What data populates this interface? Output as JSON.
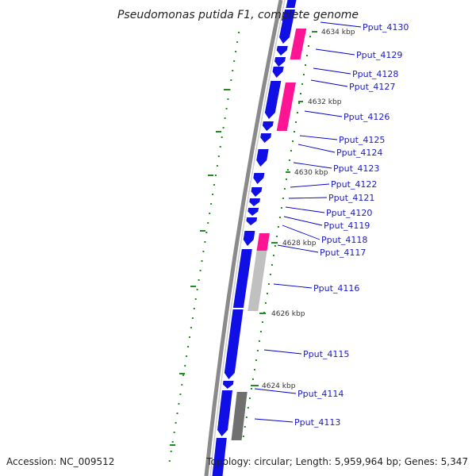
{
  "title": "Pseudomonas putida F1, complete genome",
  "footer": {
    "accession": "Accession: NC_009512",
    "summary": "Topology: circular; Length: 5,959,964 bp; Genes: 5,347"
  },
  "colors": {
    "forward_gene": "#1010e6",
    "highlight_gene": "#ff1493",
    "gray_gene": "#c0c0c0",
    "dark_gray_gene": "#707070",
    "backbone": "#888888",
    "tick": "#228b22",
    "label_text": "#1a1acc",
    "leader_line": "#0000cc"
  },
  "ticks": [
    {
      "label": "4624 kbp"
    },
    {
      "label": "4626 kbp"
    },
    {
      "label": "4628 kbp"
    },
    {
      "label": "4630 kbp"
    },
    {
      "label": "4632 kbp"
    },
    {
      "label": "4634 kbp"
    }
  ],
  "gene_labels": [
    "Pput_4113",
    "Pput_4114",
    "Pput_4115",
    "Pput_4116",
    "Pput_4117",
    "Pput_4118",
    "Pput_4119",
    "Pput_4120",
    "Pput_4121",
    "Pput_4122",
    "Pput_4123",
    "Pput_4124",
    "Pput_4125",
    "Pput_4126",
    "Pput_4127",
    "Pput_4128",
    "Pput_4129",
    "Pput_4130"
  ]
}
